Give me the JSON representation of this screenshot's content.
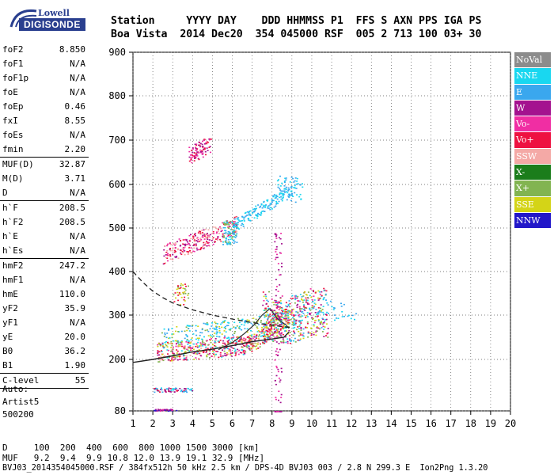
{
  "logo": {
    "top": "Lowell",
    "bottom": "DIGISONDE"
  },
  "header": {
    "line1": "Station     YYYY DAY    DDD HHMMSS P1  FFS S AXN PPS IGA PS",
    "line2": "Boa Vista  2014 Dec20  354 045000 RSF  005 2 713 100 03+ 30"
  },
  "params": [
    {
      "label": "foF2",
      "value": "8.850"
    },
    {
      "label": "foF1",
      "value": "N/A"
    },
    {
      "label": "foF1p",
      "value": "N/A"
    },
    {
      "label": "foE",
      "value": "N/A"
    },
    {
      "label": "foEp",
      "value": "0.46"
    },
    {
      "label": "fxI",
      "value": "8.55"
    },
    {
      "label": "foEs",
      "value": "N/A"
    },
    {
      "label": "fmin",
      "value": "2.20"
    },
    {
      "label": "MUF(D)",
      "value": "32.87",
      "sep": true
    },
    {
      "label": "M(D)",
      "value": "3.71"
    },
    {
      "label": "D",
      "value": "N/A"
    },
    {
      "label": "h`F",
      "value": "208.5",
      "sep": true
    },
    {
      "label": "h`F2",
      "value": "208.5"
    },
    {
      "label": "h`E",
      "value": "N/A"
    },
    {
      "label": "h`Es",
      "value": "N/A"
    },
    {
      "label": "hmF2",
      "value": "247.2",
      "sep": true
    },
    {
      "label": "hmF1",
      "value": "N/A"
    },
    {
      "label": "hmE",
      "value": "110.0"
    },
    {
      "label": "yF2",
      "value": "35.9"
    },
    {
      "label": "yF1",
      "value": "N/A"
    },
    {
      "label": "yE",
      "value": "20.0"
    },
    {
      "label": "B0",
      "value": "36.2"
    },
    {
      "label": "B1",
      "value": "1.90"
    },
    {
      "label": "C-level",
      "value": "55",
      "sep": true
    }
  ],
  "auto": {
    "line1": "Auto:",
    "line2": "Artist5",
    "line3": "500200"
  },
  "legend": [
    {
      "label": "NoVal",
      "color": "#8c8c8c"
    },
    {
      "label": "NNE",
      "color": "#19d7f0"
    },
    {
      "label": "E",
      "color": "#3aa7ee"
    },
    {
      "label": "W",
      "color": "#a4128f"
    },
    {
      "label": "Vo-",
      "color": "#f02ea3"
    },
    {
      "label": "Vo+",
      "color": "#ee1140"
    },
    {
      "label": "SSW",
      "color": "#f4a9a6"
    },
    {
      "label": "X-",
      "color": "#1b7d1b"
    },
    {
      "label": "X+",
      "color": "#82b451"
    },
    {
      "label": "SSE",
      "color": "#d4d417"
    },
    {
      "label": "NNW",
      "color": "#2217c9"
    }
  ],
  "footer": {
    "line1": "D     100  200  400  600  800 1000 1500 3000 [km]",
    "line2": "MUF   9.2  9.4  9.9 10.8 12.0 13.9 19.1 32.9 [MHz]",
    "line3": "BVJ03_2014354045000.RSF / 384fx512h 50 kHz 2.5 km / DPS-4D BVJ03 003 / 2.8 N 299.3 E  Ion2Png 1.3.20"
  },
  "chart_data": {
    "type": "scatter",
    "xlim": [
      1,
      20
    ],
    "ylim": [
      80,
      900
    ],
    "xticks": [
      1,
      2,
      3,
      4,
      5,
      6,
      7,
      8,
      9,
      10,
      11,
      12,
      13,
      14,
      15,
      16,
      17,
      18,
      19,
      20
    ],
    "yticks": [
      80,
      200,
      300,
      400,
      500,
      600,
      700,
      800,
      900
    ],
    "profile_curve": {
      "x": [
        1,
        2,
        3,
        4,
        5,
        6,
        7,
        8,
        8.6,
        8.85
      ],
      "y": [
        193,
        200,
        208,
        217,
        223,
        231,
        240,
        246,
        250,
        262
      ]
    },
    "o_trace_curve": {
      "x": [
        5.3,
        6,
        6.6,
        7.1,
        7.5,
        7.9,
        8.3,
        8.7,
        8.85
      ],
      "y": [
        222,
        238,
        258,
        278,
        300,
        315,
        290,
        278,
        270
      ]
    },
    "dashed_curve": {
      "x": [
        1,
        1.5,
        2,
        2.5,
        3,
        4,
        5,
        6,
        7,
        8,
        8.9
      ],
      "y": [
        400,
        375,
        355,
        340,
        328,
        312,
        300,
        291,
        283,
        277,
        272
      ]
    }
  }
}
